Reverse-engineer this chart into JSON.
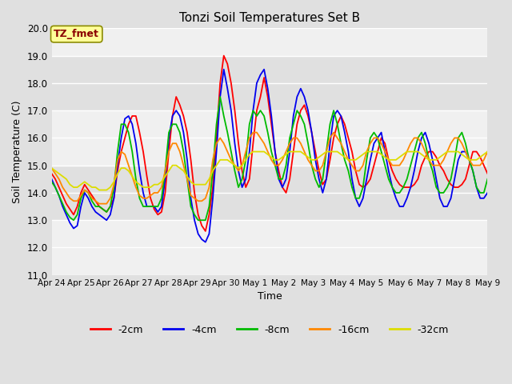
{
  "title": "Tonzi Soil Temperatures Set B",
  "xlabel": "Time",
  "ylabel": "Soil Temperature (C)",
  "ylim": [
    11.0,
    20.0
  ],
  "yticks": [
    11.0,
    12.0,
    13.0,
    14.0,
    15.0,
    16.0,
    17.0,
    18.0,
    19.0,
    20.0
  ],
  "xtick_labels": [
    "Apr 24",
    "Apr 25",
    "Apr 26",
    "Apr 27",
    "Apr 28",
    "Apr 29",
    "Apr 30",
    "May 1",
    "May 2",
    "May 3",
    "May 4",
    "May 5",
    "May 6",
    "May 7",
    "May 8",
    "May 9"
  ],
  "annotation_text": "TZ_fmet",
  "annotation_color": "#8B0000",
  "annotation_bg": "#FFFF99",
  "annotation_border": "#8B8B00",
  "colors": {
    "-2cm": "#FF0000",
    "-4cm": "#0000EE",
    "-8cm": "#00BB00",
    "-16cm": "#FF8800",
    "-32cm": "#DDDD00"
  },
  "legend_labels": [
    "-2cm",
    "-4cm",
    "-8cm",
    "-16cm",
    "-32cm"
  ],
  "fig_bg": "#E0E0E0",
  "plot_bg_light": "#F0F0F0",
  "plot_bg_dark": "#E0E0E0",
  "grid_color": "#FFFFFF",
  "series": {
    "-2cm": [
      14.7,
      14.5,
      14.2,
      13.9,
      13.6,
      13.4,
      13.2,
      13.5,
      14.0,
      14.3,
      14.1,
      13.9,
      13.7,
      13.5,
      13.4,
      13.3,
      13.5,
      13.8,
      14.8,
      15.5,
      16.0,
      16.5,
      16.8,
      16.8,
      16.2,
      15.5,
      14.6,
      13.8,
      13.4,
      13.2,
      13.3,
      14.0,
      15.5,
      16.8,
      17.5,
      17.2,
      16.8,
      16.2,
      15.2,
      14.0,
      13.2,
      12.8,
      12.6,
      13.2,
      14.2,
      16.0,
      18.0,
      19.0,
      18.7,
      18.0,
      17.0,
      15.8,
      14.8,
      14.2,
      14.5,
      15.8,
      17.0,
      17.5,
      18.2,
      17.5,
      16.5,
      15.5,
      14.8,
      14.2,
      14.0,
      14.5,
      15.5,
      16.5,
      17.0,
      17.2,
      16.8,
      16.2,
      15.5,
      14.8,
      14.3,
      14.5,
      15.2,
      16.0,
      16.5,
      16.8,
      16.5,
      16.0,
      15.5,
      14.8,
      14.3,
      14.2,
      14.3,
      14.5,
      15.0,
      15.5,
      16.0,
      15.8,
      15.2,
      14.8,
      14.5,
      14.3,
      14.2,
      14.2,
      14.2,
      14.3,
      14.5,
      15.0,
      15.3,
      15.5,
      15.5,
      15.3,
      15.0,
      14.8,
      14.5,
      14.3,
      14.2,
      14.2,
      14.3,
      14.5,
      15.0,
      15.5,
      15.5,
      15.3,
      15.0,
      14.7
    ],
    "-4cm": [
      14.5,
      14.2,
      13.9,
      13.5,
      13.2,
      12.9,
      12.7,
      12.8,
      13.5,
      14.0,
      13.8,
      13.5,
      13.3,
      13.2,
      13.1,
      13.0,
      13.2,
      13.8,
      15.0,
      16.0,
      16.7,
      16.8,
      16.5,
      15.8,
      14.8,
      14.0,
      13.5,
      13.5,
      13.5,
      13.3,
      13.5,
      14.5,
      16.0,
      16.8,
      17.0,
      16.8,
      16.2,
      15.2,
      13.8,
      13.0,
      12.5,
      12.3,
      12.2,
      12.5,
      13.8,
      15.5,
      17.5,
      18.5,
      17.8,
      17.0,
      15.8,
      14.8,
      14.2,
      14.5,
      15.5,
      17.0,
      18.0,
      18.3,
      18.5,
      17.8,
      16.8,
      15.5,
      14.5,
      14.2,
      14.5,
      15.5,
      16.8,
      17.5,
      17.8,
      17.5,
      17.0,
      16.2,
      15.2,
      14.5,
      14.0,
      14.5,
      15.8,
      16.8,
      17.0,
      16.8,
      16.2,
      15.5,
      14.5,
      13.8,
      13.5,
      13.8,
      14.5,
      15.2,
      15.8,
      16.0,
      16.2,
      15.5,
      14.8,
      14.2,
      13.8,
      13.5,
      13.5,
      13.8,
      14.2,
      14.8,
      15.5,
      16.0,
      16.2,
      15.8,
      15.2,
      14.5,
      13.8,
      13.5,
      13.5,
      13.8,
      14.5,
      15.2,
      15.5,
      15.5,
      15.2,
      14.8,
      14.2,
      13.8,
      13.8,
      14.0
    ],
    "-8cm": [
      14.4,
      14.2,
      13.9,
      13.6,
      13.3,
      13.1,
      13.0,
      13.2,
      13.8,
      14.1,
      14.0,
      13.7,
      13.5,
      13.5,
      13.4,
      13.3,
      13.5,
      14.2,
      15.5,
      16.5,
      16.5,
      16.2,
      15.5,
      14.5,
      13.8,
      13.5,
      13.5,
      13.5,
      13.5,
      13.5,
      13.8,
      14.8,
      16.2,
      16.5,
      16.5,
      16.2,
      15.5,
      14.5,
      13.5,
      13.2,
      13.0,
      13.0,
      13.0,
      13.5,
      14.8,
      16.5,
      17.5,
      16.8,
      16.2,
      15.5,
      14.8,
      14.2,
      14.5,
      15.2,
      16.5,
      17.0,
      16.8,
      17.0,
      16.8,
      16.2,
      15.5,
      15.0,
      14.5,
      14.5,
      15.0,
      16.0,
      16.5,
      17.0,
      16.8,
      16.5,
      15.8,
      15.0,
      14.5,
      14.2,
      14.5,
      15.5,
      16.5,
      17.0,
      16.5,
      15.8,
      15.2,
      14.8,
      14.2,
      13.8,
      13.8,
      14.2,
      15.2,
      16.0,
      16.2,
      16.0,
      15.5,
      15.0,
      14.5,
      14.2,
      14.0,
      14.0,
      14.2,
      14.5,
      15.0,
      15.5,
      16.0,
      16.2,
      15.8,
      15.2,
      14.8,
      14.2,
      14.0,
      14.0,
      14.2,
      14.5,
      15.2,
      16.0,
      16.2,
      15.8,
      15.2,
      14.8,
      14.2,
      14.0,
      14.0,
      14.5
    ],
    "-16cm": [
      14.9,
      14.7,
      14.5,
      14.2,
      14.0,
      13.8,
      13.7,
      13.7,
      13.9,
      14.1,
      14.0,
      13.8,
      13.7,
      13.6,
      13.6,
      13.6,
      13.8,
      14.3,
      15.2,
      15.5,
      15.4,
      15.0,
      14.6,
      14.2,
      13.9,
      13.8,
      13.8,
      13.9,
      14.0,
      14.0,
      14.2,
      14.8,
      15.5,
      15.8,
      15.8,
      15.5,
      15.0,
      14.5,
      13.9,
      13.8,
      13.7,
      13.7,
      13.8,
      14.2,
      15.2,
      15.8,
      16.0,
      15.8,
      15.5,
      15.2,
      15.0,
      14.8,
      15.0,
      15.5,
      16.0,
      16.2,
      16.2,
      16.0,
      15.8,
      15.5,
      15.2,
      15.0,
      15.0,
      15.2,
      15.5,
      15.8,
      16.0,
      16.0,
      15.8,
      15.5,
      15.2,
      15.0,
      14.8,
      14.8,
      15.0,
      15.5,
      16.0,
      16.2,
      16.0,
      15.8,
      15.5,
      15.2,
      15.0,
      14.8,
      14.8,
      15.0,
      15.5,
      15.8,
      16.0,
      16.0,
      15.8,
      15.5,
      15.2,
      15.0,
      15.0,
      15.0,
      15.2,
      15.5,
      15.8,
      16.0,
      16.0,
      15.8,
      15.5,
      15.2,
      15.0,
      15.0,
      15.0,
      15.2,
      15.5,
      15.8,
      16.0,
      16.0,
      15.8,
      15.5,
      15.2,
      15.0,
      15.0,
      15.0,
      15.2,
      15.5
    ],
    "-32cm": [
      14.9,
      14.8,
      14.7,
      14.6,
      14.5,
      14.3,
      14.2,
      14.2,
      14.3,
      14.4,
      14.3,
      14.2,
      14.2,
      14.1,
      14.1,
      14.1,
      14.2,
      14.4,
      14.7,
      14.9,
      14.9,
      14.8,
      14.6,
      14.4,
      14.3,
      14.2,
      14.2,
      14.2,
      14.3,
      14.3,
      14.4,
      14.6,
      14.8,
      15.0,
      15.0,
      14.9,
      14.8,
      14.6,
      14.4,
      14.3,
      14.3,
      14.3,
      14.3,
      14.5,
      14.8,
      15.0,
      15.2,
      15.2,
      15.2,
      15.1,
      15.0,
      14.9,
      15.0,
      15.2,
      15.4,
      15.5,
      15.5,
      15.5,
      15.5,
      15.4,
      15.3,
      15.2,
      15.2,
      15.3,
      15.4,
      15.5,
      15.5,
      15.5,
      15.5,
      15.4,
      15.3,
      15.2,
      15.2,
      15.3,
      15.4,
      15.5,
      15.5,
      15.5,
      15.5,
      15.4,
      15.3,
      15.2,
      15.2,
      15.2,
      15.3,
      15.4,
      15.5,
      15.5,
      15.5,
      15.5,
      15.4,
      15.3,
      15.2,
      15.2,
      15.2,
      15.3,
      15.4,
      15.5,
      15.5,
      15.5,
      15.5,
      15.4,
      15.3,
      15.2,
      15.2,
      15.2,
      15.3,
      15.4,
      15.5,
      15.5,
      15.5,
      15.5,
      15.4,
      15.3,
      15.2,
      15.2,
      15.2,
      15.3,
      15.4,
      15.5
    ]
  }
}
